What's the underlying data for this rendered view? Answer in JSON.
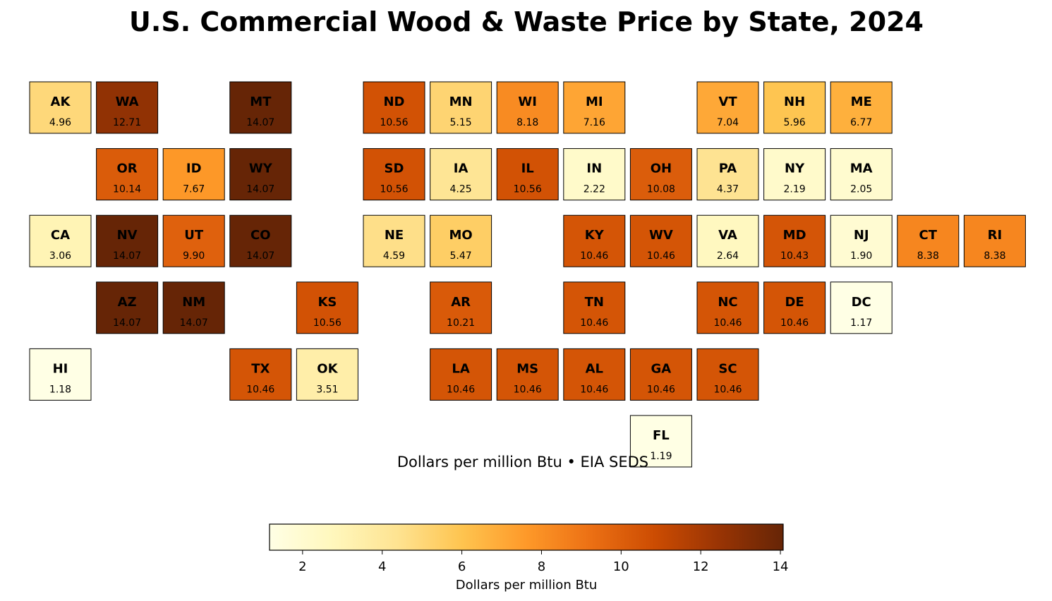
{
  "chart_data": {
    "type": "heatmap",
    "title": "U.S. Commercial Wood & Waste Price by State, 2024",
    "subtitle": "Dollars per million Btu • EIA SEDS",
    "colorbar": {
      "label": "Dollars per million Btu",
      "ticks": [
        "2",
        "4",
        "6",
        "8",
        "10",
        "12",
        "14"
      ],
      "range": [
        1.17,
        14.07
      ],
      "colormap": "YlOrBr",
      "position": "bottom-center"
    },
    "grid": false,
    "tiles": [
      {
        "state": "AK",
        "value": "4.96",
        "row": 0,
        "col": 0
      },
      {
        "state": "WA",
        "value": "12.71",
        "row": 0,
        "col": 1
      },
      {
        "state": "MT",
        "value": "14.07",
        "row": 0,
        "col": 3
      },
      {
        "state": "ND",
        "value": "10.56",
        "row": 0,
        "col": 5
      },
      {
        "state": "MN",
        "value": "5.15",
        "row": 0,
        "col": 6
      },
      {
        "state": "WI",
        "value": "8.18",
        "row": 0,
        "col": 7
      },
      {
        "state": "MI",
        "value": "7.16",
        "row": 0,
        "col": 8
      },
      {
        "state": "VT",
        "value": "7.04",
        "row": 0,
        "col": 10
      },
      {
        "state": "NH",
        "value": "5.96",
        "row": 0,
        "col": 11
      },
      {
        "state": "ME",
        "value": "6.77",
        "row": 0,
        "col": 12
      },
      {
        "state": "OR",
        "value": "10.14",
        "row": 1,
        "col": 1
      },
      {
        "state": "ID",
        "value": "7.67",
        "row": 1,
        "col": 2
      },
      {
        "state": "WY",
        "value": "14.07",
        "row": 1,
        "col": 3
      },
      {
        "state": "SD",
        "value": "10.56",
        "row": 1,
        "col": 5
      },
      {
        "state": "IA",
        "value": "4.25",
        "row": 1,
        "col": 6
      },
      {
        "state": "IL",
        "value": "10.56",
        "row": 1,
        "col": 7
      },
      {
        "state": "IN",
        "value": "2.22",
        "row": 1,
        "col": 8
      },
      {
        "state": "OH",
        "value": "10.08",
        "row": 1,
        "col": 9
      },
      {
        "state": "PA",
        "value": "4.37",
        "row": 1,
        "col": 10
      },
      {
        "state": "NY",
        "value": "2.19",
        "row": 1,
        "col": 11
      },
      {
        "state": "MA",
        "value": "2.05",
        "row": 1,
        "col": 12
      },
      {
        "state": "CA",
        "value": "3.06",
        "row": 2,
        "col": 0
      },
      {
        "state": "NV",
        "value": "14.07",
        "row": 2,
        "col": 1
      },
      {
        "state": "UT",
        "value": "9.90",
        "row": 2,
        "col": 2
      },
      {
        "state": "CO",
        "value": "14.07",
        "row": 2,
        "col": 3
      },
      {
        "state": "NE",
        "value": "4.59",
        "row": 2,
        "col": 5
      },
      {
        "state": "MO",
        "value": "5.47",
        "row": 2,
        "col": 6
      },
      {
        "state": "KY",
        "value": "10.46",
        "row": 2,
        "col": 8
      },
      {
        "state": "WV",
        "value": "10.46",
        "row": 2,
        "col": 9
      },
      {
        "state": "VA",
        "value": "2.64",
        "row": 2,
        "col": 10
      },
      {
        "state": "MD",
        "value": "10.43",
        "row": 2,
        "col": 11
      },
      {
        "state": "NJ",
        "value": "1.90",
        "row": 2,
        "col": 12
      },
      {
        "state": "CT",
        "value": "8.38",
        "row": 2,
        "col": 13
      },
      {
        "state": "RI",
        "value": "8.38",
        "row": 2,
        "col": 14
      },
      {
        "state": "AZ",
        "value": "14.07",
        "row": 3,
        "col": 1
      },
      {
        "state": "NM",
        "value": "14.07",
        "row": 3,
        "col": 2
      },
      {
        "state": "KS",
        "value": "10.56",
        "row": 3,
        "col": 4
      },
      {
        "state": "AR",
        "value": "10.21",
        "row": 3,
        "col": 6
      },
      {
        "state": "TN",
        "value": "10.46",
        "row": 3,
        "col": 8
      },
      {
        "state": "NC",
        "value": "10.46",
        "row": 3,
        "col": 10
      },
      {
        "state": "DE",
        "value": "10.46",
        "row": 3,
        "col": 11
      },
      {
        "state": "DC",
        "value": "1.17",
        "row": 3,
        "col": 12
      },
      {
        "state": "HI",
        "value": "1.18",
        "row": 4,
        "col": 0
      },
      {
        "state": "TX",
        "value": "10.46",
        "row": 4,
        "col": 3
      },
      {
        "state": "OK",
        "value": "3.51",
        "row": 4,
        "col": 4
      },
      {
        "state": "LA",
        "value": "10.46",
        "row": 4,
        "col": 6
      },
      {
        "state": "MS",
        "value": "10.46",
        "row": 4,
        "col": 7
      },
      {
        "state": "AL",
        "value": "10.46",
        "row": 4,
        "col": 8
      },
      {
        "state": "GA",
        "value": "10.46",
        "row": 4,
        "col": 9
      },
      {
        "state": "SC",
        "value": "10.46",
        "row": 4,
        "col": 10
      },
      {
        "state": "FL",
        "value": "1.19",
        "row": 5,
        "col": 9
      }
    ]
  }
}
